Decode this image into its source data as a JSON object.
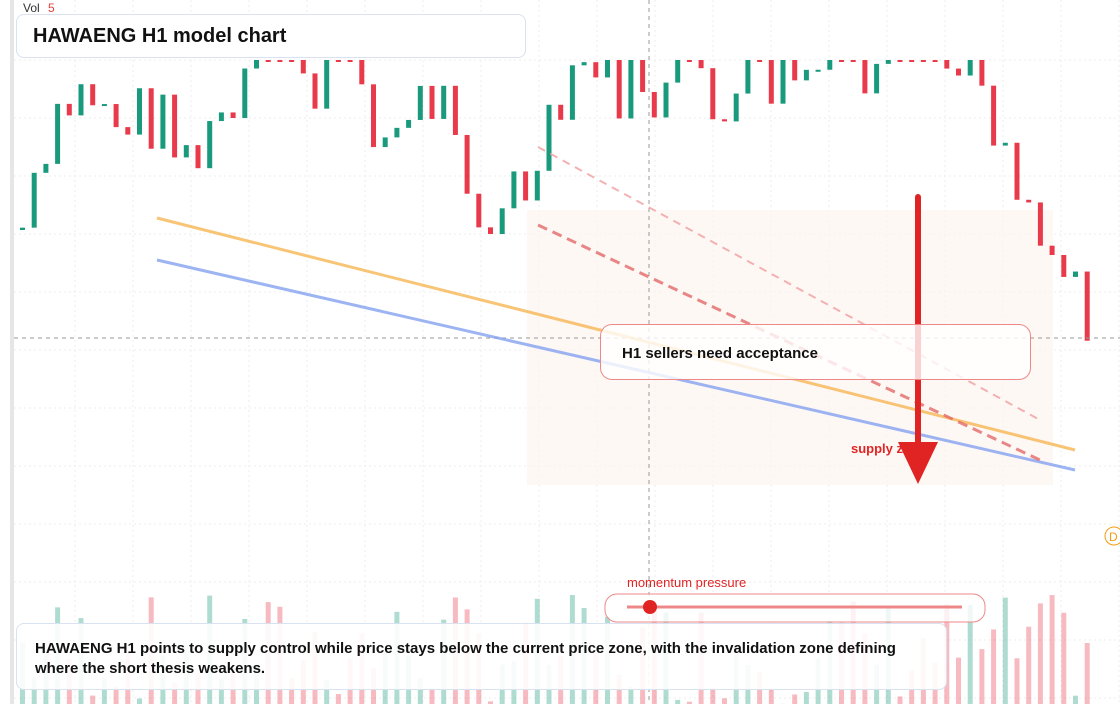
{
  "header": {
    "vol_label": "Vol",
    "vol_value": 5,
    "title": "HAWAENG H1 model chart"
  },
  "annotations": {
    "acceptance": "H1 sellers need acceptance",
    "supply_zone": "supply zone",
    "momentum": "momentum pressure",
    "badge": "D"
  },
  "caption": "HAWAENG H1 points to supply control while price stays below the current price zone, with the invalidation zone defining where the short thesis weakens."
}
